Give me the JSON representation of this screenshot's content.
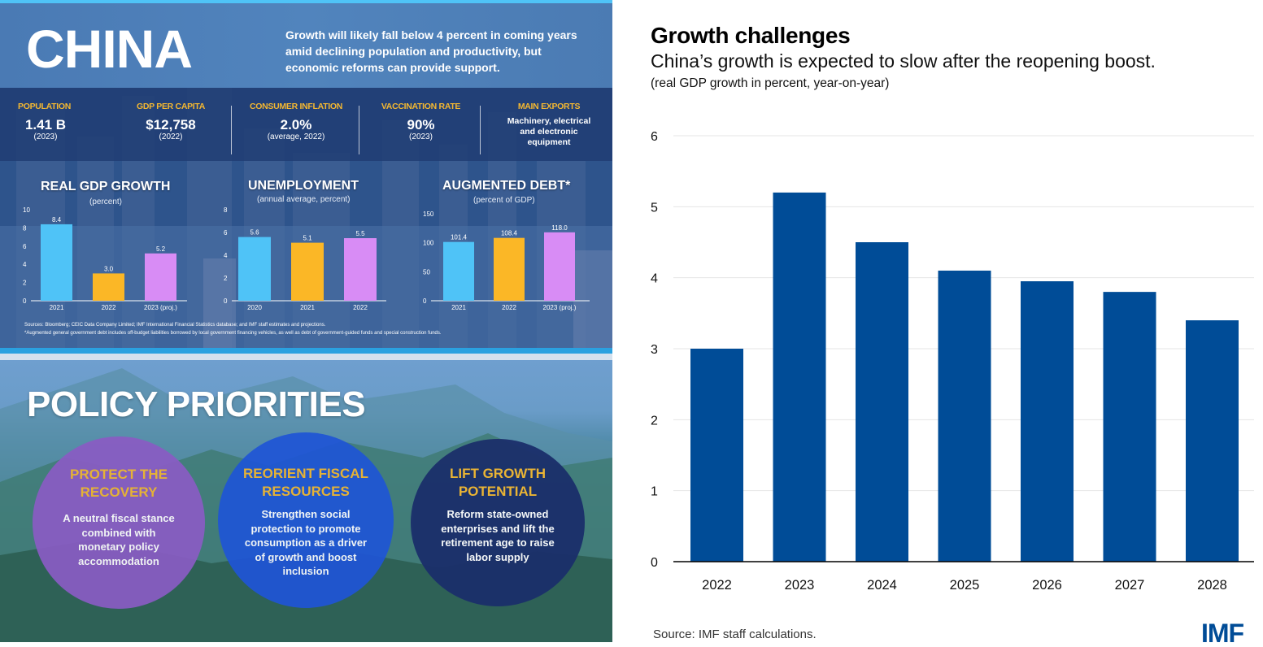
{
  "infographic": {
    "title": "CHINA",
    "subtitle": "Growth will likely fall below 4 percent in coming years amid declining population and productivity, but economic reforms can provide support.",
    "stats": [
      {
        "label": "POPULATION",
        "value": "1.41 B",
        "note": "(2023)"
      },
      {
        "label": "GDP PER CAPITA",
        "value": "$12,758",
        "note": "(2022)"
      },
      {
        "label": "CONSUMER INFLATION",
        "value": "2.0%",
        "note": "(average, 2022)"
      },
      {
        "label": "VACCINATION RATE",
        "value": "90%",
        "note": "(2023)"
      },
      {
        "label": "MAIN EXPORTS",
        "text": "Machinery, electrical and electronic equipment"
      }
    ],
    "sources": "Sources: Bloomberg; CEIC Data Company Limited; IMF International Financial Statistics database; and IMF staff estimates and projections.",
    "footnote": "*Augmented general government debt includes off-budget liabilities borrowed by local government financing vehicles, as well as debt of government-guided funds and special construction funds.",
    "colors": {
      "cyan": "#4fc3f7",
      "gold": "#fbb726",
      "violet": "#d88cf5",
      "label_gold": "#f3b731"
    },
    "policy": {
      "title": "POLICY PRIORITIES",
      "items": [
        {
          "heading": "PROTECT THE RECOVERY",
          "body": "A neutral fiscal stance combined with monetary policy accommodation",
          "color": "#8a5cc4"
        },
        {
          "heading": "REORIENT FISCAL RESOURCES",
          "body": "Strengthen social protection to promote consumption as a driver of growth and boost inclusion",
          "color": "#1f55d6"
        },
        {
          "heading": "LIFT GROWTH POTENTIAL",
          "body": "Reform state-owned enterprises and lift the retirement age to raise labor supply",
          "color": "#1b2f6b"
        }
      ]
    }
  },
  "right": {
    "title": "Growth challenges",
    "subtitle": "China’s growth is expected to slow after the reopening boost.",
    "unit": "(real GDP growth in percent, year-on-year)",
    "source": "Source: IMF staff calculations.",
    "logo": "IMF"
  },
  "chart_data": [
    {
      "type": "bar",
      "title": "REAL GDP GROWTH",
      "subtitle": "(percent)",
      "categories": [
        "2021",
        "2022",
        "2023 (proj.)"
      ],
      "values": [
        8.4,
        3.0,
        5.2
      ],
      "value_labels": [
        "8.4",
        "3.0",
        "5.2"
      ],
      "ylim": [
        0,
        10
      ],
      "yticks": [
        0,
        2,
        4,
        6,
        8,
        10
      ],
      "bar_colors": [
        "#4fc3f7",
        "#fbb726",
        "#d88cf5"
      ]
    },
    {
      "type": "bar",
      "title": "UNEMPLOYMENT",
      "subtitle": "(annual average, percent)",
      "categories": [
        "2020",
        "2021",
        "2022"
      ],
      "values": [
        5.6,
        5.1,
        5.5
      ],
      "value_labels": [
        "5.6",
        "5.1",
        "5.5"
      ],
      "ylim": [
        0,
        8
      ],
      "yticks": [
        0,
        2,
        4,
        6,
        8
      ],
      "bar_colors": [
        "#4fc3f7",
        "#fbb726",
        "#d88cf5"
      ]
    },
    {
      "type": "bar",
      "title": "AUGMENTED DEBT*",
      "subtitle": "(percent of GDP)",
      "categories": [
        "2021",
        "2022",
        "2023 (proj.)"
      ],
      "values": [
        101.4,
        108.4,
        118.0
      ],
      "value_labels": [
        "101.4",
        "108.4",
        "118.0"
      ],
      "ylim": [
        0,
        150
      ],
      "yticks": [
        0,
        50,
        100,
        150
      ],
      "bar_colors": [
        "#4fc3f7",
        "#fbb726",
        "#d88cf5"
      ]
    },
    {
      "type": "bar",
      "title": "Growth challenges",
      "subtitle": "China’s growth is expected to slow after the reopening boost.",
      "ylabel": "real GDP growth in percent, year-on-year",
      "xlabel": "",
      "categories": [
        "2022",
        "2023",
        "2024",
        "2025",
        "2026",
        "2027",
        "2028"
      ],
      "values": [
        3.0,
        5.2,
        4.5,
        4.1,
        3.95,
        3.8,
        3.4
      ],
      "ylim": [
        0,
        6
      ],
      "yticks": [
        0,
        1,
        2,
        3,
        4,
        5,
        6
      ],
      "grid": true,
      "bar_color": "#004c97",
      "source": "Source: IMF staff calculations."
    }
  ]
}
